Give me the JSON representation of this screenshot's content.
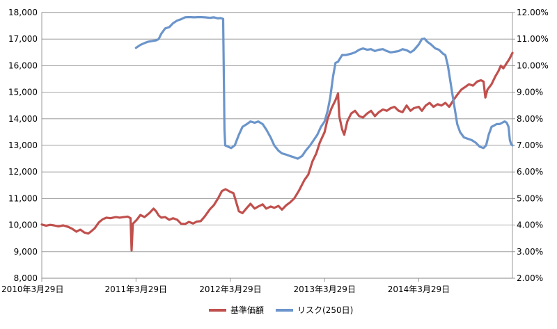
{
  "chart_data": {
    "type": "line",
    "title": "",
    "xlabel": "",
    "ylabel": "",
    "dual_axis": true,
    "grid": "horizontal",
    "legend_position": "bottom",
    "x_tick_labels": [
      "2010年3月29日",
      "2011年3月29日",
      "2012年3月29日",
      "2013年3月29日",
      "2014年3月29日"
    ],
    "x_tick_dates": [
      "2010-03-29",
      "2011-03-29",
      "2012-03-29",
      "2013-03-29",
      "2014-03-29"
    ],
    "xlim": [
      "2010-03-29",
      "2015-03-27"
    ],
    "ylim_left": [
      8000,
      18000
    ],
    "left_tick_labels": [
      "8,000",
      "9,000",
      "10,000",
      "11,000",
      "12,000",
      "13,000",
      "14,000",
      "15,000",
      "16,000",
      "17,000",
      "18,000"
    ],
    "ylim_right": [
      0.02,
      0.12
    ],
    "right_tick_labels": [
      "2.00%",
      "3.00%",
      "4.00%",
      "5.00%",
      "6.00%",
      "7.00%",
      "8.00%",
      "9.00%",
      "10.00%",
      "11.00%",
      "12.00%"
    ],
    "series": [
      {
        "name": "基準価額",
        "axis": "left",
        "color": "#c0504d",
        "points": [
          [
            "2010-03-29",
            10020
          ],
          [
            "2010-04-15",
            9980
          ],
          [
            "2010-05-01",
            10010
          ],
          [
            "2010-05-15",
            9990
          ],
          [
            "2010-06-01",
            9950
          ],
          [
            "2010-06-20",
            9990
          ],
          [
            "2010-07-10",
            9930
          ],
          [
            "2010-07-25",
            9860
          ],
          [
            "2010-08-10",
            9750
          ],
          [
            "2010-08-25",
            9830
          ],
          [
            "2010-09-10",
            9720
          ],
          [
            "2010-09-25",
            9680
          ],
          [
            "2010-10-05",
            9750
          ],
          [
            "2010-10-20",
            9880
          ],
          [
            "2010-11-05",
            10100
          ],
          [
            "2010-11-20",
            10220
          ],
          [
            "2010-12-05",
            10280
          ],
          [
            "2010-12-20",
            10260
          ],
          [
            "2011-01-10",
            10300
          ],
          [
            "2011-01-25",
            10280
          ],
          [
            "2011-02-10",
            10300
          ],
          [
            "2011-02-25",
            10320
          ],
          [
            "2011-03-08",
            10260
          ],
          [
            "2011-03-12",
            9050
          ],
          [
            "2011-03-17",
            10050
          ],
          [
            "2011-04-01",
            10200
          ],
          [
            "2011-04-15",
            10380
          ],
          [
            "2011-05-01",
            10300
          ],
          [
            "2011-05-20",
            10450
          ],
          [
            "2011-06-05",
            10620
          ],
          [
            "2011-06-15",
            10520
          ],
          [
            "2011-06-25",
            10360
          ],
          [
            "2011-07-05",
            10280
          ],
          [
            "2011-07-20",
            10300
          ],
          [
            "2011-08-05",
            10200
          ],
          [
            "2011-08-20",
            10260
          ],
          [
            "2011-09-05",
            10200
          ],
          [
            "2011-09-20",
            10050
          ],
          [
            "2011-10-05",
            10040
          ],
          [
            "2011-10-20",
            10120
          ],
          [
            "2011-11-05",
            10060
          ],
          [
            "2011-11-20",
            10130
          ],
          [
            "2011-12-05",
            10150
          ],
          [
            "2011-12-20",
            10320
          ],
          [
            "2012-01-10",
            10600
          ],
          [
            "2012-01-25",
            10750
          ],
          [
            "2012-02-10",
            11000
          ],
          [
            "2012-02-25",
            11280
          ],
          [
            "2012-03-10",
            11350
          ],
          [
            "2012-03-29",
            11250
          ],
          [
            "2012-04-10",
            11200
          ],
          [
            "2012-04-20",
            10880
          ],
          [
            "2012-05-01",
            10520
          ],
          [
            "2012-05-15",
            10450
          ],
          [
            "2012-06-01",
            10650
          ],
          [
            "2012-06-15",
            10800
          ],
          [
            "2012-07-01",
            10620
          ],
          [
            "2012-07-15",
            10700
          ],
          [
            "2012-08-01",
            10780
          ],
          [
            "2012-08-15",
            10620
          ],
          [
            "2012-09-01",
            10700
          ],
          [
            "2012-09-15",
            10650
          ],
          [
            "2012-10-01",
            10720
          ],
          [
            "2012-10-15",
            10580
          ],
          [
            "2012-11-01",
            10750
          ],
          [
            "2012-11-15",
            10850
          ],
          [
            "2012-12-01",
            11000
          ],
          [
            "2012-12-20",
            11300
          ],
          [
            "2013-01-10",
            11700
          ],
          [
            "2013-01-25",
            11900
          ],
          [
            "2013-02-10",
            12400
          ],
          [
            "2013-02-25",
            12700
          ],
          [
            "2013-03-10",
            13100
          ],
          [
            "2013-03-29",
            13500
          ],
          [
            "2013-04-10",
            14000
          ],
          [
            "2013-04-25",
            14400
          ],
          [
            "2013-05-10",
            14700
          ],
          [
            "2013-05-20",
            14950
          ],
          [
            "2013-05-25",
            14100
          ],
          [
            "2013-06-05",
            13600
          ],
          [
            "2013-06-13",
            13400
          ],
          [
            "2013-06-25",
            13900
          ],
          [
            "2013-07-10",
            14200
          ],
          [
            "2013-07-25",
            14300
          ],
          [
            "2013-08-10",
            14100
          ],
          [
            "2013-08-25",
            14050
          ],
          [
            "2013-09-10",
            14200
          ],
          [
            "2013-09-25",
            14300
          ],
          [
            "2013-10-10",
            14100
          ],
          [
            "2013-10-25",
            14250
          ],
          [
            "2013-11-10",
            14350
          ],
          [
            "2013-11-25",
            14300
          ],
          [
            "2013-12-10",
            14400
          ],
          [
            "2013-12-25",
            14450
          ],
          [
            "2014-01-10",
            14300
          ],
          [
            "2014-01-25",
            14250
          ],
          [
            "2014-02-10",
            14500
          ],
          [
            "2014-02-25",
            14300
          ],
          [
            "2014-03-10",
            14400
          ],
          [
            "2014-03-29",
            14450
          ],
          [
            "2014-04-10",
            14300
          ],
          [
            "2014-04-25",
            14500
          ],
          [
            "2014-05-10",
            14600
          ],
          [
            "2014-05-25",
            14450
          ],
          [
            "2014-06-10",
            14550
          ],
          [
            "2014-06-25",
            14500
          ],
          [
            "2014-07-10",
            14600
          ],
          [
            "2014-07-25",
            14450
          ],
          [
            "2014-08-10",
            14700
          ],
          [
            "2014-08-25",
            14900
          ],
          [
            "2014-09-10",
            15100
          ],
          [
            "2014-09-25",
            15200
          ],
          [
            "2014-10-10",
            15300
          ],
          [
            "2014-10-25",
            15250
          ],
          [
            "2014-11-10",
            15400
          ],
          [
            "2014-11-25",
            15450
          ],
          [
            "2014-12-05",
            15400
          ],
          [
            "2014-12-12",
            14800
          ],
          [
            "2014-12-20",
            15100
          ],
          [
            "2015-01-05",
            15300
          ],
          [
            "2015-01-20",
            15600
          ],
          [
            "2015-02-01",
            15800
          ],
          [
            "2015-02-10",
            16000
          ],
          [
            "2015-02-20",
            15900
          ],
          [
            "2015-03-05",
            16100
          ],
          [
            "2015-03-15",
            16250
          ],
          [
            "2015-03-27",
            16480
          ]
        ]
      },
      {
        "name": "リスク(250日)",
        "axis": "right",
        "color": "#6b95cb",
        "points": [
          [
            "2011-03-29",
            0.1067
          ],
          [
            "2011-04-15",
            0.1078
          ],
          [
            "2011-05-01",
            0.1085
          ],
          [
            "2011-05-15",
            0.109
          ],
          [
            "2011-06-01",
            0.1093
          ],
          [
            "2011-06-15",
            0.1095
          ],
          [
            "2011-06-25",
            0.11
          ],
          [
            "2011-07-05",
            0.112
          ],
          [
            "2011-07-20",
            0.114
          ],
          [
            "2011-08-05",
            0.1145
          ],
          [
            "2011-08-20",
            0.116
          ],
          [
            "2011-09-05",
            0.117
          ],
          [
            "2011-09-20",
            0.1175
          ],
          [
            "2011-10-05",
            0.1182
          ],
          [
            "2011-10-20",
            0.1183
          ],
          [
            "2011-11-10",
            0.1182
          ],
          [
            "2011-12-01",
            0.1183
          ],
          [
            "2011-12-20",
            0.1182
          ],
          [
            "2012-01-10",
            0.118
          ],
          [
            "2012-01-25",
            0.1182
          ],
          [
            "2012-02-10",
            0.1178
          ],
          [
            "2012-02-20",
            0.1179
          ],
          [
            "2012-03-01",
            0.1176
          ],
          [
            "2012-03-06",
            0.076
          ],
          [
            "2012-03-09",
            0.07
          ],
          [
            "2012-03-20",
            0.0695
          ],
          [
            "2012-04-01",
            0.069
          ],
          [
            "2012-04-15",
            0.07
          ],
          [
            "2012-05-01",
            0.074
          ],
          [
            "2012-05-15",
            0.077
          ],
          [
            "2012-06-01",
            0.078
          ],
          [
            "2012-06-15",
            0.079
          ],
          [
            "2012-07-01",
            0.0785
          ],
          [
            "2012-07-15",
            0.079
          ],
          [
            "2012-08-01",
            0.078
          ],
          [
            "2012-08-15",
            0.076
          ],
          [
            "2012-09-01",
            0.073
          ],
          [
            "2012-09-15",
            0.07
          ],
          [
            "2012-10-01",
            0.068
          ],
          [
            "2012-10-15",
            0.067
          ],
          [
            "2012-11-01",
            0.0665
          ],
          [
            "2012-11-15",
            0.066
          ],
          [
            "2012-12-01",
            0.0655
          ],
          [
            "2012-12-15",
            0.065
          ],
          [
            "2013-01-01",
            0.066
          ],
          [
            "2013-01-15",
            0.068
          ],
          [
            "2013-02-01",
            0.07
          ],
          [
            "2013-02-15",
            0.072
          ],
          [
            "2013-03-01",
            0.074
          ],
          [
            "2013-03-15",
            0.077
          ],
          [
            "2013-03-29",
            0.079
          ],
          [
            "2013-04-10",
            0.083
          ],
          [
            "2013-04-20",
            0.088
          ],
          [
            "2013-05-01",
            0.096
          ],
          [
            "2013-05-10",
            0.101
          ],
          [
            "2013-05-20",
            0.1015
          ],
          [
            "2013-06-05",
            0.104
          ],
          [
            "2013-06-20",
            0.104
          ],
          [
            "2013-07-10",
            0.1045
          ],
          [
            "2013-07-25",
            0.105
          ],
          [
            "2013-08-10",
            0.106
          ],
          [
            "2013-08-25",
            0.1065
          ],
          [
            "2013-09-10",
            0.106
          ],
          [
            "2013-09-25",
            0.1062
          ],
          [
            "2013-10-10",
            0.1055
          ],
          [
            "2013-10-25",
            0.106
          ],
          [
            "2013-11-10",
            0.1062
          ],
          [
            "2013-11-25",
            0.1055
          ],
          [
            "2013-12-10",
            0.105
          ],
          [
            "2013-12-25",
            0.1052
          ],
          [
            "2014-01-10",
            0.1055
          ],
          [
            "2014-01-25",
            0.1062
          ],
          [
            "2014-02-10",
            0.1058
          ],
          [
            "2014-02-25",
            0.105
          ],
          [
            "2014-03-10",
            0.1058
          ],
          [
            "2014-03-29",
            0.108
          ],
          [
            "2014-04-10",
            0.11
          ],
          [
            "2014-04-20",
            0.1102
          ],
          [
            "2014-05-01",
            0.109
          ],
          [
            "2014-05-15",
            0.108
          ],
          [
            "2014-06-01",
            0.1065
          ],
          [
            "2014-06-15",
            0.106
          ],
          [
            "2014-07-01",
            0.1045
          ],
          [
            "2014-07-10",
            0.104
          ],
          [
            "2014-07-20",
            0.1
          ],
          [
            "2014-07-28",
            0.095
          ],
          [
            "2014-08-05",
            0.09
          ],
          [
            "2014-08-15",
            0.084
          ],
          [
            "2014-08-25",
            0.078
          ],
          [
            "2014-09-05",
            0.075
          ],
          [
            "2014-09-20",
            0.073
          ],
          [
            "2014-10-05",
            0.0725
          ],
          [
            "2014-10-20",
            0.072
          ],
          [
            "2014-11-05",
            0.071
          ],
          [
            "2014-11-20",
            0.0695
          ],
          [
            "2014-12-05",
            0.069
          ],
          [
            "2014-12-15",
            0.07
          ],
          [
            "2014-12-25",
            0.074
          ],
          [
            "2015-01-05",
            0.077
          ],
          [
            "2015-01-15",
            0.0775
          ],
          [
            "2015-01-25",
            0.078
          ],
          [
            "2015-02-05",
            0.078
          ],
          [
            "2015-02-15",
            0.0785
          ],
          [
            "2015-02-25",
            0.079
          ],
          [
            "2015-03-05",
            0.0785
          ],
          [
            "2015-03-12",
            0.077
          ],
          [
            "2015-03-17",
            0.072
          ],
          [
            "2015-03-22",
            0.0705
          ],
          [
            "2015-03-27",
            0.07
          ]
        ]
      }
    ]
  }
}
